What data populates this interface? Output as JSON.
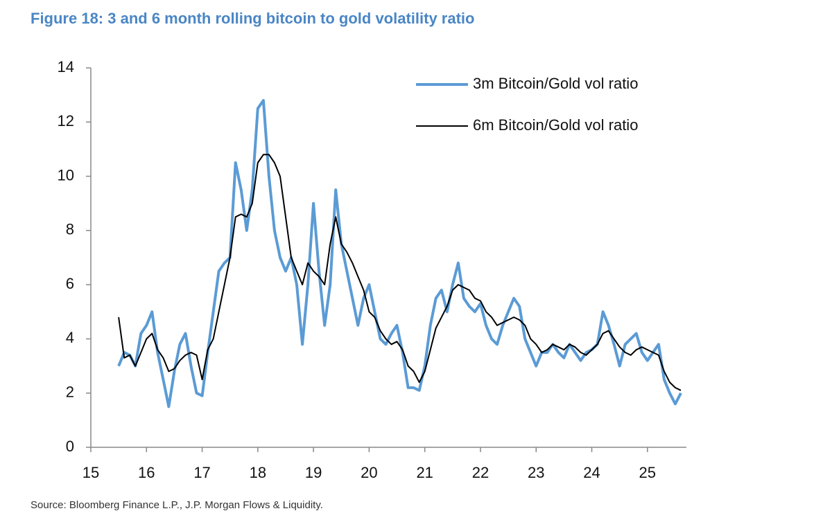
{
  "chart_data": {
    "type": "line",
    "title": "Figure 18: 3 and 6 month rolling bitcoin to gold volatility ratio",
    "source": "Source: Bloomberg Finance L.P., J.P. Morgan Flows & Liquidity.",
    "x": [
      15.5,
      15.6,
      15.7,
      15.8,
      15.9,
      16.0,
      16.1,
      16.2,
      16.3,
      16.4,
      16.5,
      16.6,
      16.7,
      16.8,
      16.9,
      17.0,
      17.1,
      17.2,
      17.3,
      17.4,
      17.5,
      17.6,
      17.7,
      17.8,
      17.9,
      18.0,
      18.1,
      18.2,
      18.3,
      18.4,
      18.5,
      18.6,
      18.7,
      18.8,
      18.9,
      19.0,
      19.1,
      19.2,
      19.3,
      19.4,
      19.5,
      19.6,
      19.7,
      19.8,
      19.9,
      20.0,
      20.1,
      20.2,
      20.3,
      20.4,
      20.5,
      20.6,
      20.7,
      20.8,
      20.9,
      21.0,
      21.1,
      21.2,
      21.3,
      21.4,
      21.5,
      21.6,
      21.7,
      21.8,
      21.9,
      22.0,
      22.1,
      22.2,
      22.3,
      22.4,
      22.5,
      22.6,
      22.7,
      22.8,
      22.9,
      23.0,
      23.1,
      23.2,
      23.3,
      23.4,
      23.5,
      23.6,
      23.7,
      23.8,
      23.9,
      24.0,
      24.1,
      24.2,
      24.3,
      24.4,
      24.5,
      24.6,
      24.7,
      24.8,
      24.9,
      25.0,
      25.1,
      25.2,
      25.3,
      25.4,
      25.5,
      25.6
    ],
    "series": [
      {
        "name": "3m Bitcoin/Gold vol ratio",
        "color": "#5b9bd5",
        "width": 4,
        "values": [
          3.0,
          3.5,
          3.4,
          3.0,
          4.2,
          4.5,
          5.0,
          3.5,
          2.5,
          1.5,
          2.8,
          3.8,
          4.2,
          3.0,
          2.0,
          1.9,
          3.5,
          5.0,
          6.5,
          6.8,
          7.0,
          10.5,
          9.5,
          8.0,
          9.5,
          12.5,
          12.8,
          10.0,
          8.0,
          7.0,
          6.5,
          7.0,
          6.0,
          3.8,
          6.0,
          9.0,
          6.5,
          4.5,
          6.0,
          9.5,
          7.5,
          6.5,
          5.5,
          4.5,
          5.5,
          6.0,
          5.0,
          4.0,
          3.8,
          4.2,
          4.5,
          3.5,
          2.2,
          2.2,
          2.1,
          3.0,
          4.5,
          5.5,
          5.8,
          5.0,
          6.0,
          6.8,
          5.5,
          5.2,
          5.0,
          5.3,
          4.5,
          4.0,
          3.8,
          4.5,
          5.0,
          5.5,
          5.2,
          4.0,
          3.5,
          3.0,
          3.5,
          3.5,
          3.8,
          3.5,
          3.3,
          3.8,
          3.5,
          3.2,
          3.5,
          3.6,
          3.8,
          5.0,
          4.5,
          3.8,
          3.0,
          3.8,
          4.0,
          4.2,
          3.5,
          3.2,
          3.5,
          3.8,
          2.5,
          2.0,
          1.6,
          2.0
        ]
      },
      {
        "name": "6m Bitcoin/Gold vol ratio",
        "color": "#000000",
        "width": 2,
        "values": [
          4.8,
          3.3,
          3.4,
          3.0,
          3.5,
          4.0,
          4.2,
          3.6,
          3.3,
          2.8,
          2.9,
          3.2,
          3.4,
          3.5,
          3.4,
          2.5,
          3.6,
          4.0,
          5.0,
          6.0,
          7.0,
          8.5,
          8.6,
          8.5,
          9.0,
          10.5,
          10.8,
          10.8,
          10.5,
          10.0,
          8.5,
          7.0,
          6.5,
          6.0,
          6.8,
          6.5,
          6.3,
          6.0,
          7.5,
          8.5,
          7.5,
          7.2,
          6.8,
          6.3,
          5.8,
          5.0,
          4.8,
          4.3,
          4.0,
          3.8,
          3.9,
          3.6,
          3.0,
          2.8,
          2.4,
          2.8,
          3.6,
          4.4,
          4.8,
          5.2,
          5.8,
          6.0,
          5.9,
          5.8,
          5.5,
          5.4,
          5.0,
          4.8,
          4.5,
          4.6,
          4.7,
          4.8,
          4.7,
          4.5,
          4.0,
          3.8,
          3.5,
          3.6,
          3.8,
          3.7,
          3.6,
          3.8,
          3.7,
          3.5,
          3.4,
          3.6,
          3.8,
          4.2,
          4.3,
          4.0,
          3.7,
          3.5,
          3.4,
          3.6,
          3.7,
          3.6,
          3.5,
          3.4,
          2.8,
          2.4,
          2.2,
          2.1
        ]
      }
    ],
    "xlim": [
      15,
      25.7
    ],
    "xticks": [
      15,
      16,
      17,
      18,
      19,
      20,
      21,
      22,
      23,
      24,
      25
    ],
    "ylim": [
      0,
      14
    ],
    "yticks": [
      0,
      2,
      4,
      6,
      8,
      10,
      12,
      14
    ],
    "legend": "upper right",
    "grid": false
  }
}
